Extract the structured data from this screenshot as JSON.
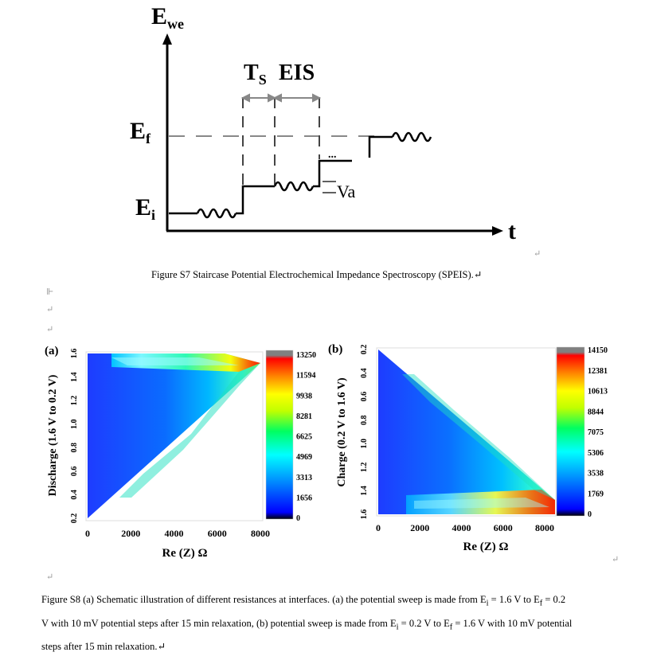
{
  "page": {
    "return_mark": "↵",
    "para_marks": [
      "↵",
      "↵",
      "↵"
    ],
    "paragraph_cursor_mark": "⊩"
  },
  "figure_s7": {
    "y_axis_label": "E",
    "y_axis_subscript": "we",
    "x_axis_label": "t",
    "ef_label": "E",
    "ef_subscript": "f",
    "ei_label": "E",
    "ei_subscript": "i",
    "ts_label": "T",
    "ts_subscript": "S",
    "eis_label": "EIS",
    "ellipsis": "...",
    "va_label": "Va",
    "caption": "Figure S7 Staircase Potential Electrochemical Impedance Spectroscopy (SPEIS).↵"
  },
  "figure_s8": {
    "caption_lines": [
      "Figure S8 (a) Schematic illustration of different resistances at interfaces. (a) the potential sweep is made from E",
      "V with 10 mV potential steps after 15 min relaxation, (b) potential sweep is made from E",
      "steps after 15 min relaxation.↵"
    ],
    "caption_parts": {
      "l1_sub_i": "i",
      "l1_mid": " = 1.6 V to E",
      "l1_sub_f": "f",
      "l1_end": " = 0.2",
      "l2_sub_i": "i",
      "l2_mid": " = 0.2 V to E",
      "l2_sub_f": "f",
      "l2_end": " = 1.6 V with 10 mV potential"
    }
  },
  "chart_data": [
    {
      "type": "heatmap",
      "panel_label": "(a)",
      "xlabel": "Re (Z) Ω",
      "ylabel": "Discharge (1.6 V to 0.2 V)",
      "x_ticks": [
        0,
        2000,
        4000,
        6000,
        8000
      ],
      "xlim": [
        0,
        8000
      ],
      "y_ticks": [
        0.2,
        0.4,
        0.6,
        0.8,
        1.0,
        1.2,
        1.4,
        1.6
      ],
      "ylim": [
        1.6,
        0.2
      ],
      "colorbar_ticks": [
        13250,
        11594,
        9938,
        8281,
        6625,
        4969,
        3313,
        1656,
        0
      ],
      "colorbar_range": [
        0,
        13250
      ],
      "colormap": [
        "#000000",
        "#0000ff",
        "#00a0ff",
        "#00ffff",
        "#00ff60",
        "#c0ff00",
        "#ffff00",
        "#ff8000",
        "#ff0000",
        "#808080"
      ]
    },
    {
      "type": "heatmap",
      "panel_label": "(b)",
      "xlabel": "Re (Z) Ω",
      "ylabel": "Charge (0.2 V to 1.6 V)",
      "x_ticks": [
        0,
        2000,
        4000,
        6000,
        8000
      ],
      "xlim": [
        0,
        8500
      ],
      "y_ticks": [
        0.2,
        0.4,
        0.6,
        0.8,
        1.0,
        1.2,
        1.4,
        1.6
      ],
      "ylim": [
        0.2,
        1.6
      ],
      "colorbar_ticks": [
        14150,
        12381,
        10613,
        8844,
        7075,
        5306,
        3538,
        1769,
        0
      ],
      "colorbar_range": [
        0,
        14150
      ],
      "colormap": [
        "#000000",
        "#0000ff",
        "#00a0ff",
        "#00ffff",
        "#00ff60",
        "#c0ff00",
        "#ffff00",
        "#ff8000",
        "#ff0000",
        "#808080"
      ]
    }
  ]
}
